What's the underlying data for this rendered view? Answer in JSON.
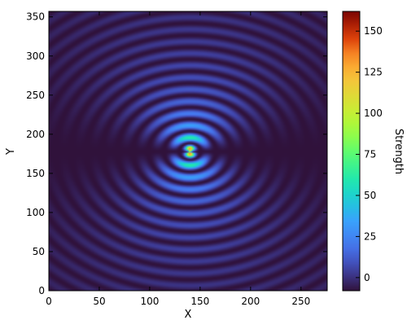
{
  "chart_data": {
    "type": "heatmap",
    "title": "",
    "xlabel": "X",
    "ylabel": "Y",
    "xlim": [
      0,
      276
    ],
    "ylim": [
      0,
      357
    ],
    "xticks": [
      0,
      50,
      100,
      150,
      200,
      250
    ],
    "yticks": [
      0,
      50,
      100,
      150,
      200,
      250,
      300,
      350
    ],
    "source_center": [
      140,
      178
    ],
    "value_range": [
      -8,
      162
    ],
    "colormap": "turbo",
    "colorbar": {
      "label": "Strength",
      "ticks": [
        0,
        25,
        50,
        75,
        100,
        125,
        150
      ],
      "range": [
        -8,
        162
      ],
      "position": "right"
    },
    "grid": false,
    "pattern": "dipole interference: concentric rings centered at the source, weak along the horizontal line through the source"
  }
}
